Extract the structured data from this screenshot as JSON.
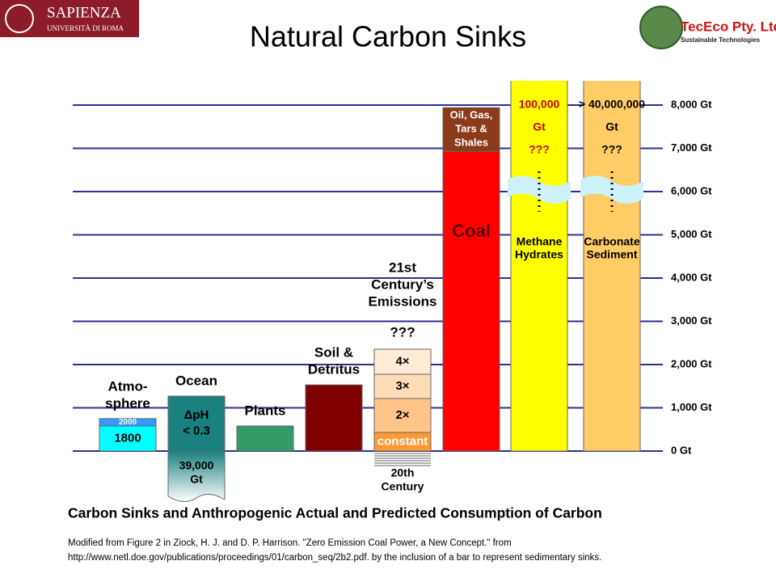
{
  "header": {
    "title": "Natural Carbon Sinks",
    "left_logo": [
      "SAPIENZA",
      "UNIVERSITÀ DI ROMA"
    ],
    "right_logo": [
      "TecEco Pty. Ltd.",
      "Sustainable Technologies"
    ]
  },
  "chart_data": {
    "type": "bar",
    "ylim": [
      0,
      8560
    ],
    "yticks": [
      {
        "value": 0,
        "label": "0 Gt"
      },
      {
        "value": 1000,
        "label": "1,000 Gt"
      },
      {
        "value": 2000,
        "label": "2,000 Gt"
      },
      {
        "value": 3000,
        "label": "3,000 Gt"
      },
      {
        "value": 4000,
        "label": "4,000 Gt"
      },
      {
        "value": 5000,
        "label": "5,000 Gt"
      },
      {
        "value": 6000,
        "label": "6,000 Gt"
      },
      {
        "value": 7000,
        "label": "7,000 Gt"
      },
      {
        "value": 8000,
        "label": "8,000 Gt"
      }
    ],
    "grid": true,
    "grid_color": "#2e3192",
    "bars": [
      {
        "label": [
          "Atmo-",
          "sphere"
        ],
        "segments": [
          {
            "value": 580,
            "color": "#00ffff",
            "text_color": "#000000",
            "text": [
              "1800"
            ]
          },
          {
            "value": 170,
            "color": "#3399ff",
            "text_color": "#ffffff",
            "text": [
              "2000"
            ]
          }
        ]
      },
      {
        "label": [
          "Ocean"
        ],
        "segments": [
          {
            "value": 1270,
            "color": "#1a8080",
            "text_color": "#000000",
            "text": [
              "ΔpH",
              "< 0.3"
            ]
          }
        ],
        "below": [
          "39,000",
          "Gt"
        ]
      },
      {
        "label": [
          "Plants"
        ],
        "segments": [
          {
            "value": 580,
            "color": "#339966",
            "text_color": "#000000",
            "text": []
          }
        ]
      },
      {
        "label": [
          "Soil &",
          "Detritus"
        ],
        "segments": [
          {
            "value": 1530,
            "color": "#800000",
            "text_color": "#ffffff",
            "text": []
          }
        ]
      },
      {
        "label": [
          "21st",
          "Century’s",
          "Emissions"
        ],
        "notes": [
          "???"
        ],
        "segments": [
          {
            "value": 430,
            "color": "#ff9933",
            "text_color": "#ffffff",
            "text": [
              "constant"
            ]
          },
          {
            "value": 785,
            "color": "#ffc48a",
            "text_color": "#000000",
            "text": [
              "2×"
            ]
          },
          {
            "value": 560,
            "color": "#ffdcb8",
            "text_color": "#000000",
            "text": [
              "3×"
            ]
          },
          {
            "value": 580,
            "color": "#ffebd6",
            "text_color": "#000000",
            "text": [
              "4×"
            ]
          }
        ],
        "below": [
          "20th",
          "Century"
        ]
      },
      {
        "label": [],
        "segments": [
          {
            "value": 6930,
            "color": "#ff0000",
            "text_color": "#5a0000",
            "text": [
              "Coal"
            ]
          },
          {
            "value": 1010,
            "color": "#8b3a1a",
            "text_color": "#ffffff",
            "text": [
              "Oil, Gas,",
              "Tars &",
              "Shales"
            ]
          }
        ]
      },
      {
        "label": [
          "Methane",
          "Hydrates"
        ],
        "notes": [
          "100,000",
          "Gt",
          "???"
        ],
        "segments": [
          {
            "value": 100000,
            "color": "#ffff00",
            "text_color": "#000000",
            "text": []
          }
        ]
      },
      {
        "label": [
          "Carbonate",
          "Sediment"
        ],
        "notes": [
          "> 40,000,000",
          "Gt",
          "???"
        ],
        "segments": [
          {
            "value": 40000000,
            "color": "#ffcc66",
            "text_color": "#000000",
            "text": []
          }
        ]
      }
    ]
  },
  "caption": "Carbon Sinks and Anthropogenic Actual and Predicted Consumption of Carbon",
  "source": [
    "Modified from Figure 2 in Ziock, H. J. and D. P. Harrison. \"Zero Emission Coal Power, a New Concept.\" from",
    "http://www.netl.doe.gov/publications/proceedings/01/carbon_seq/2b2.pdf.  by the inclusion of a bar to represent sedimentary sinks."
  ]
}
